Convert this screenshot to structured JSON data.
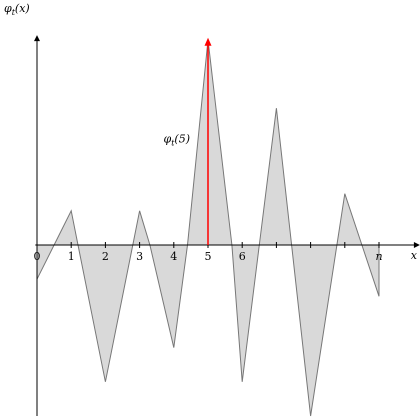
{
  "chart_data": {
    "type": "area",
    "title": "",
    "xlabel": "x",
    "ylabel": "φ_t(x)",
    "x_tick_labels": [
      "0",
      "1",
      "2",
      "3",
      "4",
      "5",
      "6",
      "",
      "",
      "",
      "n"
    ],
    "x_ticks": [
      0,
      1,
      2,
      3,
      4,
      5,
      6,
      7,
      8,
      9,
      10
    ],
    "xlim": [
      -0.05,
      11.05
    ],
    "ylim": [
      -5.0,
      5.99
    ],
    "grid": false,
    "series": [
      {
        "values_x": [
          0,
          1,
          1.2,
          2,
          3,
          3.3,
          4,
          4.4,
          5,
          5.7,
          6,
          6.5,
          7,
          8,
          9,
          10
        ],
        "values_y": [
          -1.0,
          1.0,
          0.0,
          -4.0,
          1.0,
          0.0,
          -3.0,
          0.0,
          6.0,
          0.0,
          -4.0,
          0.0,
          4.0,
          -5.0,
          1.5,
          -1.5
        ]
      }
    ],
    "annotation": {
      "label": "φ_t(5)",
      "x": 5,
      "y_from": 0,
      "y_to": 6.0
    },
    "colors": {
      "fill": "#d9d9d9",
      "edge": "#777777",
      "annotation": "#ff0000"
    }
  }
}
